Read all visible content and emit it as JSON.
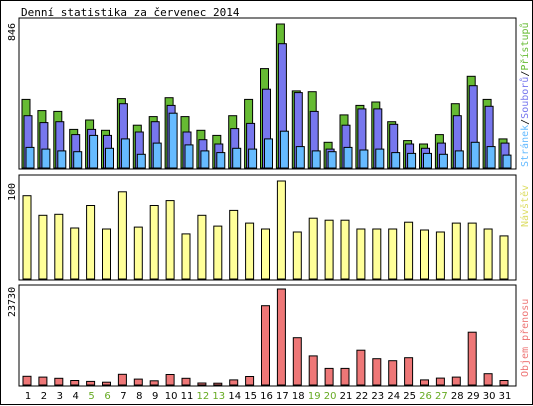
{
  "title": "Denní statistika za červenec 2014",
  "colors": {
    "hits": "#66bb33",
    "files": "#7777ee",
    "pages": "#66bbff",
    "visits": "#ffff99",
    "kbytes": "#ee7777",
    "weekend_label": "#66aa22",
    "weekday_label": "#000000"
  },
  "legend": {
    "pages": "Stránek",
    "files": "Souborů",
    "hits": "Přístupů",
    "visits": "Návštěv",
    "kbytes": "Objem přenosu",
    "sep": "/"
  },
  "chart_data": [
    {
      "type": "bar",
      "name": "hits-files-pages",
      "ymax_label": "846",
      "ylim": [
        0,
        846
      ],
      "categories": [
        "1",
        "2",
        "3",
        "4",
        "5",
        "6",
        "7",
        "8",
        "9",
        "10",
        "11",
        "12",
        "13",
        "14",
        "15",
        "16",
        "17",
        "18",
        "19",
        "20",
        "21",
        "22",
        "23",
        "24",
        "25",
        "26",
        "27",
        "28",
        "29",
        "30",
        "31"
      ],
      "weekend": [
        false,
        false,
        false,
        false,
        true,
        true,
        false,
        false,
        false,
        false,
        false,
        true,
        true,
        false,
        false,
        false,
        false,
        false,
        true,
        true,
        false,
        false,
        false,
        false,
        false,
        true,
        true,
        false,
        false,
        false,
        false
      ],
      "series": [
        {
          "name": "Přístupů",
          "key": "hits",
          "values": [
            400,
            335,
            330,
            225,
            280,
            220,
            405,
            250,
            300,
            410,
            300,
            220,
            190,
            305,
            400,
            580,
            840,
            450,
            445,
            150,
            310,
            365,
            385,
            270,
            160,
            140,
            195,
            375,
            535,
            400,
            170
          ]
        },
        {
          "name": "Souborů",
          "key": "files",
          "values": [
            305,
            265,
            270,
            195,
            225,
            190,
            375,
            210,
            270,
            365,
            210,
            165,
            140,
            230,
            260,
            460,
            725,
            440,
            330,
            110,
            250,
            345,
            345,
            255,
            140,
            115,
            145,
            305,
            480,
            360,
            145
          ]
        },
        {
          "name": "Stránek",
          "key": "pages",
          "values": [
            120,
            110,
            100,
            95,
            190,
            115,
            170,
            80,
            145,
            320,
            135,
            100,
            90,
            115,
            110,
            170,
            215,
            125,
            100,
            95,
            120,
            105,
            110,
            90,
            85,
            85,
            80,
            100,
            150,
            125,
            75
          ]
        }
      ]
    },
    {
      "type": "bar",
      "name": "visits",
      "ymax_label": "100",
      "ylim": [
        0,
        100
      ],
      "categories": [
        "1",
        "2",
        "3",
        "4",
        "5",
        "6",
        "7",
        "8",
        "9",
        "10",
        "11",
        "12",
        "13",
        "14",
        "15",
        "16",
        "17",
        "18",
        "19",
        "20",
        "21",
        "22",
        "23",
        "24",
        "25",
        "26",
        "27",
        "28",
        "29",
        "30",
        "31"
      ],
      "series": [
        {
          "name": "Návštěv",
          "key": "visits",
          "values": [
            85,
            65,
            66,
            52,
            75,
            51,
            89,
            53,
            75,
            80,
            46,
            65,
            54,
            70,
            57,
            51,
            100,
            48,
            62,
            60,
            60,
            51,
            51,
            51,
            58,
            50,
            48,
            57,
            57,
            51,
            44
          ]
        }
      ]
    },
    {
      "type": "bar",
      "name": "kbytes",
      "ymax_label": "23730",
      "ylim": [
        0,
        23730
      ],
      "categories": [
        "1",
        "2",
        "3",
        "4",
        "5",
        "6",
        "7",
        "8",
        "9",
        "10",
        "11",
        "12",
        "13",
        "14",
        "15",
        "16",
        "17",
        "18",
        "19",
        "20",
        "21",
        "22",
        "23",
        "24",
        "25",
        "26",
        "27",
        "28",
        "29",
        "30",
        "31"
      ],
      "series": [
        {
          "name": "Objem přenosu",
          "key": "kbytes",
          "values": [
            2150,
            1950,
            1650,
            1100,
            900,
            700,
            2650,
            1450,
            1050,
            2600,
            1650,
            500,
            450,
            1250,
            2100,
            19600,
            23730,
            11700,
            7200,
            4100,
            4100,
            8600,
            6500,
            6000,
            6750,
            1250,
            1700,
            1950,
            13050,
            2800,
            1100
          ]
        }
      ]
    }
  ]
}
